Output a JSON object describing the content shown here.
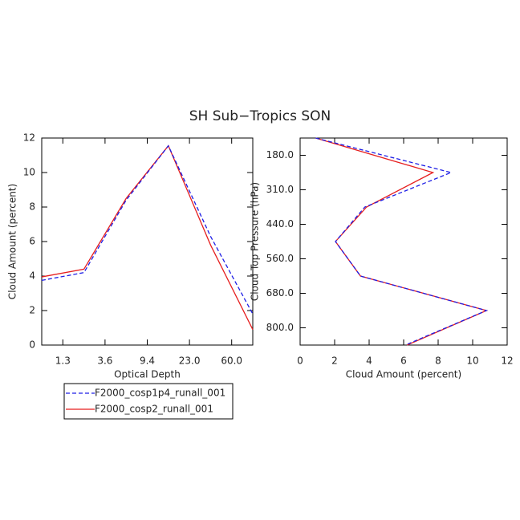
{
  "title": "SH Sub−Tropics SON",
  "chart_data": [
    {
      "type": "line",
      "xlabel": "Optical Depth",
      "ylabel": "Cloud Amount (percent)",
      "x": [
        0,
        1,
        2,
        3,
        4,
        5
      ],
      "xlim": [
        0,
        5
      ],
      "xticks": [
        {
          "value": 0.5,
          "label": "1.3"
        },
        {
          "value": 1.5,
          "label": "3.6"
        },
        {
          "value": 2.5,
          "label": "9.4"
        },
        {
          "value": 3.5,
          "label": "23.0"
        },
        {
          "value": 4.5,
          "label": "60.0"
        }
      ],
      "ylim": [
        0,
        12
      ],
      "yticks": [
        0,
        2,
        4,
        6,
        8,
        10,
        12
      ],
      "grid": false,
      "series": [
        {
          "name": "F2000_cosp1p4_runall_001",
          "color": "#1f1fe6",
          "linestyle": "dashed",
          "values": [
            3.75,
            4.2,
            8.4,
            11.55,
            6.3,
            1.8
          ]
        },
        {
          "name": "F2000_cosp2_runall_001",
          "color": "#e61f1f",
          "linestyle": "solid",
          "values": [
            3.95,
            4.4,
            8.5,
            11.55,
            5.8,
            0.9
          ]
        }
      ]
    },
    {
      "type": "line",
      "orientation": "horizontal",
      "xlabel": "Cloud Amount (percent)",
      "ylabel": "Cloud Top Pressure (hPa)",
      "y": [
        0,
        1,
        2,
        3,
        4,
        5,
        6
      ],
      "ylim": [
        6,
        0
      ],
      "yticks": [
        {
          "value": 0.5,
          "label": "180.0"
        },
        {
          "value": 1.5,
          "label": "310.0"
        },
        {
          "value": 2.5,
          "label": "440.0"
        },
        {
          "value": 3.5,
          "label": "560.0"
        },
        {
          "value": 4.5,
          "label": "680.0"
        },
        {
          "value": 5.5,
          "label": "800.0"
        }
      ],
      "xlim": [
        0,
        12
      ],
      "xticks": [
        0,
        2,
        4,
        6,
        8,
        10,
        12
      ],
      "grid": false,
      "series": [
        {
          "color": "#1f1fe6",
          "linestyle": "dashed",
          "values": [
            0.9,
            8.75,
            3.75,
            2.05,
            3.5,
            10.8,
            6.1
          ]
        },
        {
          "color": "#e61f1f",
          "linestyle": "solid",
          "values": [
            0.9,
            7.7,
            3.85,
            2.05,
            3.5,
            10.8,
            6.2
          ]
        }
      ]
    }
  ]
}
